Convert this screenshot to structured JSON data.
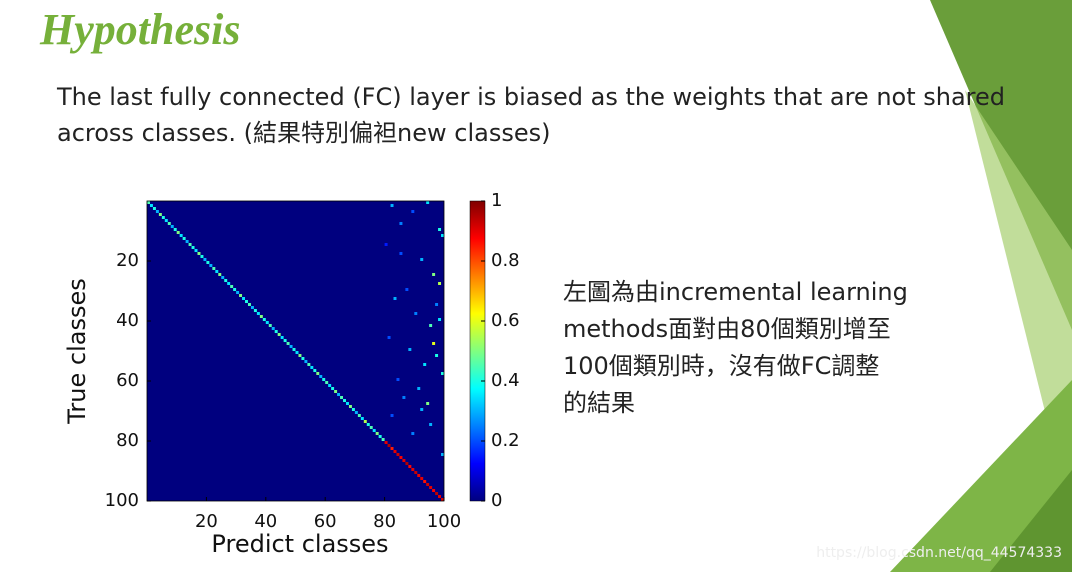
{
  "slide_title": "Hypothesis",
  "body_lines": [
    "The last fully connected (FC) layer is biased as the weights that are not shared",
    "across classes. (結果特別偏袒new classes)"
  ],
  "side_lines": [
    "左圖為由incremental learning",
    "methods面對由80個類別增至",
    "100個類別時，沒有做FC調整",
    "的結果"
  ],
  "watermark": "https://blog.csdn.net/qq_44574333",
  "chart_data": {
    "type": "heatmap",
    "xlabel": "Predict classes",
    "ylabel": "True classes",
    "xlim": [
      0,
      100
    ],
    "ylim": [
      100,
      0
    ],
    "xticks": [
      20,
      40,
      60,
      80,
      100
    ],
    "yticks": [
      20,
      40,
      60,
      80,
      100
    ],
    "clim": [
      0,
      1
    ],
    "cticks": [
      0,
      0.2,
      0.4,
      0.6,
      0.8,
      1
    ],
    "diagonal": [
      0.45,
      0.35,
      0.4,
      0.3,
      0.5,
      0.4,
      0.35,
      0.45,
      0.3,
      0.4,
      0.5,
      0.35,
      0.4,
      0.3,
      0.45,
      0.4,
      0.35,
      0.5,
      0.4,
      0.3,
      0.4,
      0.3,
      0.45,
      0.35,
      0.5,
      0.3,
      0.4,
      0.35,
      0.45,
      0.4,
      0.3,
      0.5,
      0.35,
      0.4,
      0.45,
      0.3,
      0.4,
      0.35,
      0.5,
      0.4,
      0.35,
      0.45,
      0.3,
      0.4,
      0.5,
      0.35,
      0.4,
      0.45,
      0.3,
      0.4,
      0.35,
      0.5,
      0.4,
      0.3,
      0.45,
      0.35,
      0.4,
      0.5,
      0.3,
      0.4,
      0.45,
      0.35,
      0.4,
      0.5,
      0.3,
      0.45,
      0.4,
      0.35,
      0.5,
      0.4,
      0.3,
      0.45,
      0.35,
      0.55,
      0.4,
      0.45,
      0.35,
      0.5,
      0.4,
      0.45,
      0.9,
      0.95,
      0.85,
      0.9,
      0.92,
      0.88,
      0.9,
      0.95,
      0.87,
      0.9,
      0.93,
      0.89,
      0.9,
      0.86,
      0.92,
      0.9,
      0.88,
      0.94,
      0.9,
      0.91
    ],
    "cells": {
      "x": [
        83,
        90,
        95,
        99,
        81,
        86,
        93,
        97,
        88,
        100,
        84,
        91,
        96,
        99,
        82,
        89,
        94,
        98,
        85,
        92,
        97,
        100,
        87,
        93,
        99,
        83,
        96,
        90,
        98,
        95,
        86,
        100
      ],
      "y": [
        2,
        4,
        1,
        10,
        15,
        8,
        20,
        25,
        30,
        12,
        33,
        38,
        42,
        28,
        46,
        50,
        55,
        35,
        60,
        63,
        48,
        58,
        66,
        70,
        40,
        72,
        75,
        78,
        52,
        68,
        18,
        85
      ],
      "values": [
        0.3,
        0.2,
        0.35,
        0.4,
        0.15,
        0.25,
        0.3,
        0.5,
        0.2,
        0.35,
        0.3,
        0.25,
        0.45,
        0.55,
        0.2,
        0.3,
        0.35,
        0.25,
        0.2,
        0.3,
        0.6,
        0.4,
        0.25,
        0.3,
        0.35,
        0.2,
        0.3,
        0.25,
        0.4,
        0.5,
        0.2,
        0.3
      ]
    }
  }
}
